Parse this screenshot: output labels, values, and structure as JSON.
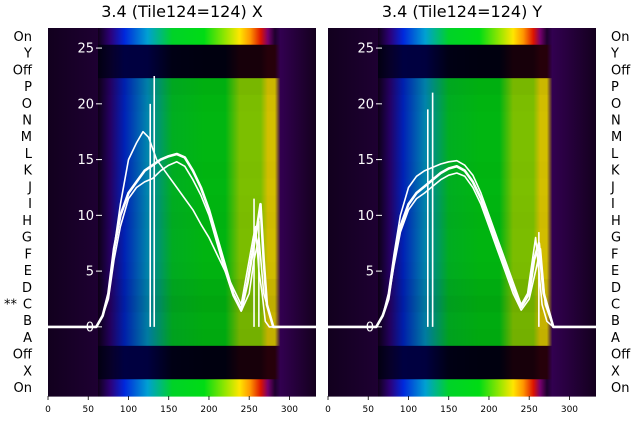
{
  "chart_data": {
    "type": "heatmap",
    "x_ticks": [
      0,
      50,
      100,
      150,
      200,
      250,
      300
    ],
    "xlim": [
      0,
      333
    ],
    "y_ticks": [
      0,
      5,
      10,
      15,
      20,
      25
    ],
    "ylim": [
      -6.2,
      26.8
    ],
    "row_labels_top_to_bottom": [
      "On",
      "Y",
      "Off",
      "P",
      "O",
      "N",
      "M",
      "L",
      "K",
      "J",
      "I",
      "H",
      "G",
      "F",
      "E",
      "D",
      "C",
      "B",
      "A",
      "Off",
      "X",
      "On"
    ],
    "marker_row": "C",
    "marker_text": "**",
    "panels": [
      {
        "title": "3.4 (Tile124=124) X",
        "band_start": 62,
        "band_end": 282,
        "line_traces": [
          {
            "x": [
              0,
              60,
              68,
              75,
              82,
              90,
              100,
              110,
              118,
              125,
              130,
              135,
              140,
              150,
              160,
              170,
              180,
              190,
              200,
              210,
              220,
              230,
              240,
              245,
              250,
              255,
              258,
              262,
              266,
              270,
              275,
              282,
              290,
              333
            ],
            "y": [
              0,
              0,
              1,
              3,
              7,
              11,
              15,
              16.5,
              17.5,
              17,
              16,
              15,
              14.5,
              13.5,
              12.5,
              11.5,
              10.5,
              9.2,
              8,
              6.5,
              5,
              3.5,
              2,
              4,
              6,
              8,
              9,
              5,
              3,
              0.5,
              0,
              0,
              0,
              0
            ]
          },
          {
            "x": [
              0,
              60,
              68,
              75,
              82,
              90,
              100,
              110,
              120,
              130,
              140,
              150,
              160,
              170,
              180,
              190,
              200,
              210,
              220,
              230,
              240,
              248,
              255,
              260,
              264,
              268,
              272,
              280,
              333
            ],
            "y": [
              0,
              0,
              1,
              3,
              7,
              10,
              12,
              13,
              14,
              14.5,
              15,
              15.3,
              15.5,
              15.2,
              14,
              12.5,
              10.5,
              8,
              5.5,
              3,
              1.5,
              4,
              7,
              9,
              11,
              6,
              2,
              0,
              0
            ]
          },
          {
            "x": [
              0,
              60,
              68,
              75,
              82,
              90,
              100,
              110,
              120,
              130,
              140,
              150,
              160,
              170,
              180,
              190,
              200,
              210,
              220,
              230,
              240,
              250,
              256,
              262,
              268,
              280,
              333
            ],
            "y": [
              0,
              0,
              1,
              2.5,
              6,
              9,
              11.5,
              12.5,
              13,
              13.3,
              14,
              14.5,
              14.8,
              14.4,
              13.2,
              11.8,
              10,
              7.5,
              5,
              2.8,
              1.4,
              3,
              6,
              8,
              3,
              0,
              0
            ]
          }
        ],
        "spikes": [
          {
            "x": 132,
            "y": 22.5
          },
          {
            "x": 127,
            "y": 20
          },
          {
            "x": 256,
            "y": 11.5
          },
          {
            "x": 262,
            "y": 9.5
          }
        ]
      },
      {
        "title": "3.4 (Tile124=124) Y",
        "band_start": 62,
        "band_end": 272,
        "line_traces": [
          {
            "x": [
              0,
              60,
              68,
              75,
              82,
              90,
              100,
              110,
              120,
              130,
              140,
              150,
              160,
              170,
              180,
              190,
              200,
              210,
              220,
              230,
              240,
              248,
              254,
              258,
              262,
              266,
              272,
              280,
              333
            ],
            "y": [
              0,
              0,
              1,
              3,
              6.5,
              10,
              12.5,
              13.5,
              14,
              14.3,
              14.6,
              14.8,
              14.9,
              14.5,
              13.6,
              12,
              10,
              8,
              6,
              4,
              2,
              3,
              6,
              8,
              5,
              2,
              0.5,
              0,
              0
            ]
          },
          {
            "x": [
              0,
              60,
              68,
              75,
              82,
              90,
              100,
              110,
              120,
              130,
              140,
              150,
              160,
              170,
              180,
              190,
              200,
              210,
              220,
              230,
              240,
              250,
              256,
              262,
              268,
              280,
              333
            ],
            "y": [
              0,
              0,
              1,
              2.5,
              6,
              9,
              11,
              12,
              12.6,
              13.2,
              13.8,
              14.2,
              14.4,
              14,
              13,
              11.5,
              9.5,
              7.5,
              5.5,
              3.5,
              1.8,
              3,
              6,
              7.5,
              3,
              0,
              0
            ]
          },
          {
            "x": [
              0,
              60,
              68,
              75,
              82,
              90,
              100,
              110,
              120,
              130,
              140,
              150,
              160,
              170,
              180,
              190,
              200,
              210,
              220,
              230,
              240,
              250,
              258,
              264,
              270,
              280,
              333
            ],
            "y": [
              0,
              0,
              1,
              2.5,
              5.5,
              8.5,
              10.5,
              11.5,
              12,
              12.6,
              13.2,
              13.6,
              13.8,
              13.5,
              12.5,
              11,
              9,
              7,
              5,
              3,
              1.5,
              2.5,
              5,
              7,
              2,
              0,
              0
            ]
          }
        ],
        "spikes": [
          {
            "x": 130,
            "y": 21
          },
          {
            "x": 124,
            "y": 19.5
          },
          {
            "x": 262,
            "y": 8.5
          }
        ]
      }
    ]
  }
}
